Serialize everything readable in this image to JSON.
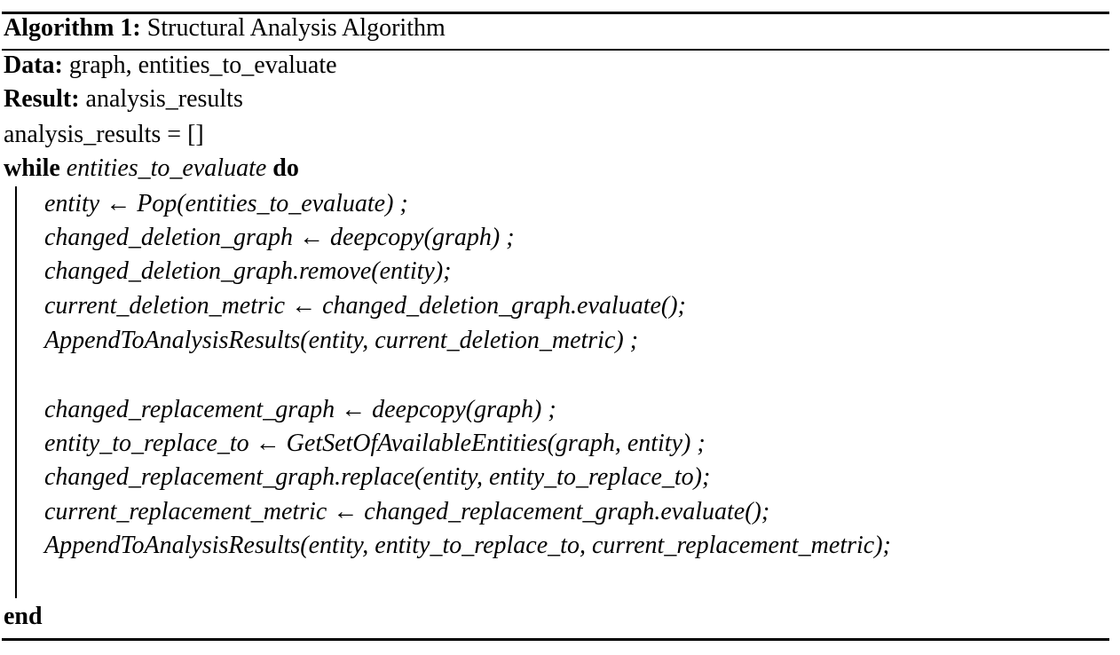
{
  "algorithm": {
    "caption_label": "Algorithm 1:",
    "caption_title": "Structural Analysis Algorithm",
    "data_label": "Data:",
    "data_value": "graph, entities_to_evaluate",
    "result_label": "Result:",
    "result_value": "analysis_results",
    "init": "analysis_results = []",
    "while_keyword": "while",
    "while_condition": "entities_to_evaluate",
    "do_keyword": "do",
    "body": [
      "entity ← Pop(entities_to_evaluate) ;",
      "changed_deletion_graph ← deepcopy(graph) ;",
      "changed_deletion_graph.remove(entity);",
      "current_deletion_metric ← changed_deletion_graph.evaluate();",
      "AppendToAnalysisResults(entity, current_deletion_metric) ;",
      "changed_replacement_graph ← deepcopy(graph) ;",
      "entity_to_replace_to ← GetSetOfAvailableEntities(graph, entity) ;",
      "changed_replacement_graph.replace(entity, entity_to_replace_to);",
      "current_replacement_metric ← changed_replacement_graph.evaluate();",
      "AppendToAnalysisResults(entity, entity_to_replace_to, current_replacement_metric);"
    ],
    "end_keyword": "end"
  }
}
